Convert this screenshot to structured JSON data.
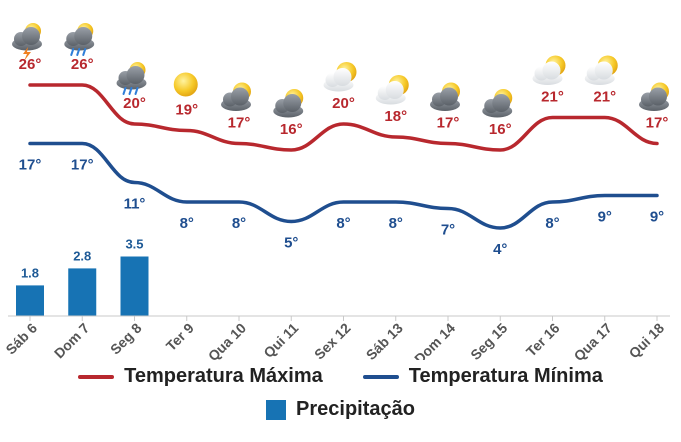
{
  "chart_data": {
    "type": "line",
    "categories": [
      "Sáb 6",
      "Dom 7",
      "Seg 8",
      "Ter 9",
      "Qua 10",
      "Qui 11",
      "Sex 12",
      "Sáb 13",
      "Dom 14",
      "Seg 15",
      "Ter 16",
      "Qua 17",
      "Qui 18"
    ],
    "series": [
      {
        "name": "Temperatura Máxima",
        "type": "line",
        "color": "#b8282e",
        "values": [
          26,
          26,
          20,
          19,
          17,
          16,
          20,
          18,
          17,
          16,
          21,
          21,
          17
        ],
        "labels": [
          "26°",
          "26°",
          "20°",
          "19°",
          "17°",
          "16°",
          "20°",
          "18°",
          "17°",
          "16°",
          "21°",
          "21°",
          "17°"
        ]
      },
      {
        "name": "Temperatura Mínima",
        "type": "line",
        "color": "#1f4e8f",
        "values": [
          17,
          17,
          11,
          8,
          8,
          5,
          8,
          8,
          7,
          4,
          8,
          9,
          9
        ],
        "labels": [
          "17°",
          "17°",
          "11°",
          "8°",
          "8°",
          "5°",
          "8°",
          "8°",
          "7°",
          "4°",
          "8°",
          "9°",
          "9°"
        ]
      },
      {
        "name": "Precipitação",
        "type": "bar",
        "color": "#1773b4",
        "values": [
          1.8,
          2.8,
          3.5,
          null,
          null,
          null,
          null,
          null,
          null,
          null,
          null,
          null,
          null
        ],
        "labels": [
          "1.8",
          "2.8",
          "3.5",
          "",
          "",
          "",
          "",
          "",
          "",
          "",
          "",
          "",
          ""
        ]
      }
    ],
    "weather_icons": [
      "thunderstorm",
      "rain",
      "rain",
      "sun",
      "cloudy",
      "cloudy",
      "partly-cloudy",
      "partly-cloudy",
      "cloudy",
      "cloudy",
      "partly-cloudy",
      "partly-cloudy",
      "cloudy"
    ],
    "legend": {
      "max_label": "Temperatura Máxima",
      "min_label": "Temperatura Mínima",
      "precip_label": "Precipitação",
      "position": "bottom"
    },
    "grid": false
  }
}
